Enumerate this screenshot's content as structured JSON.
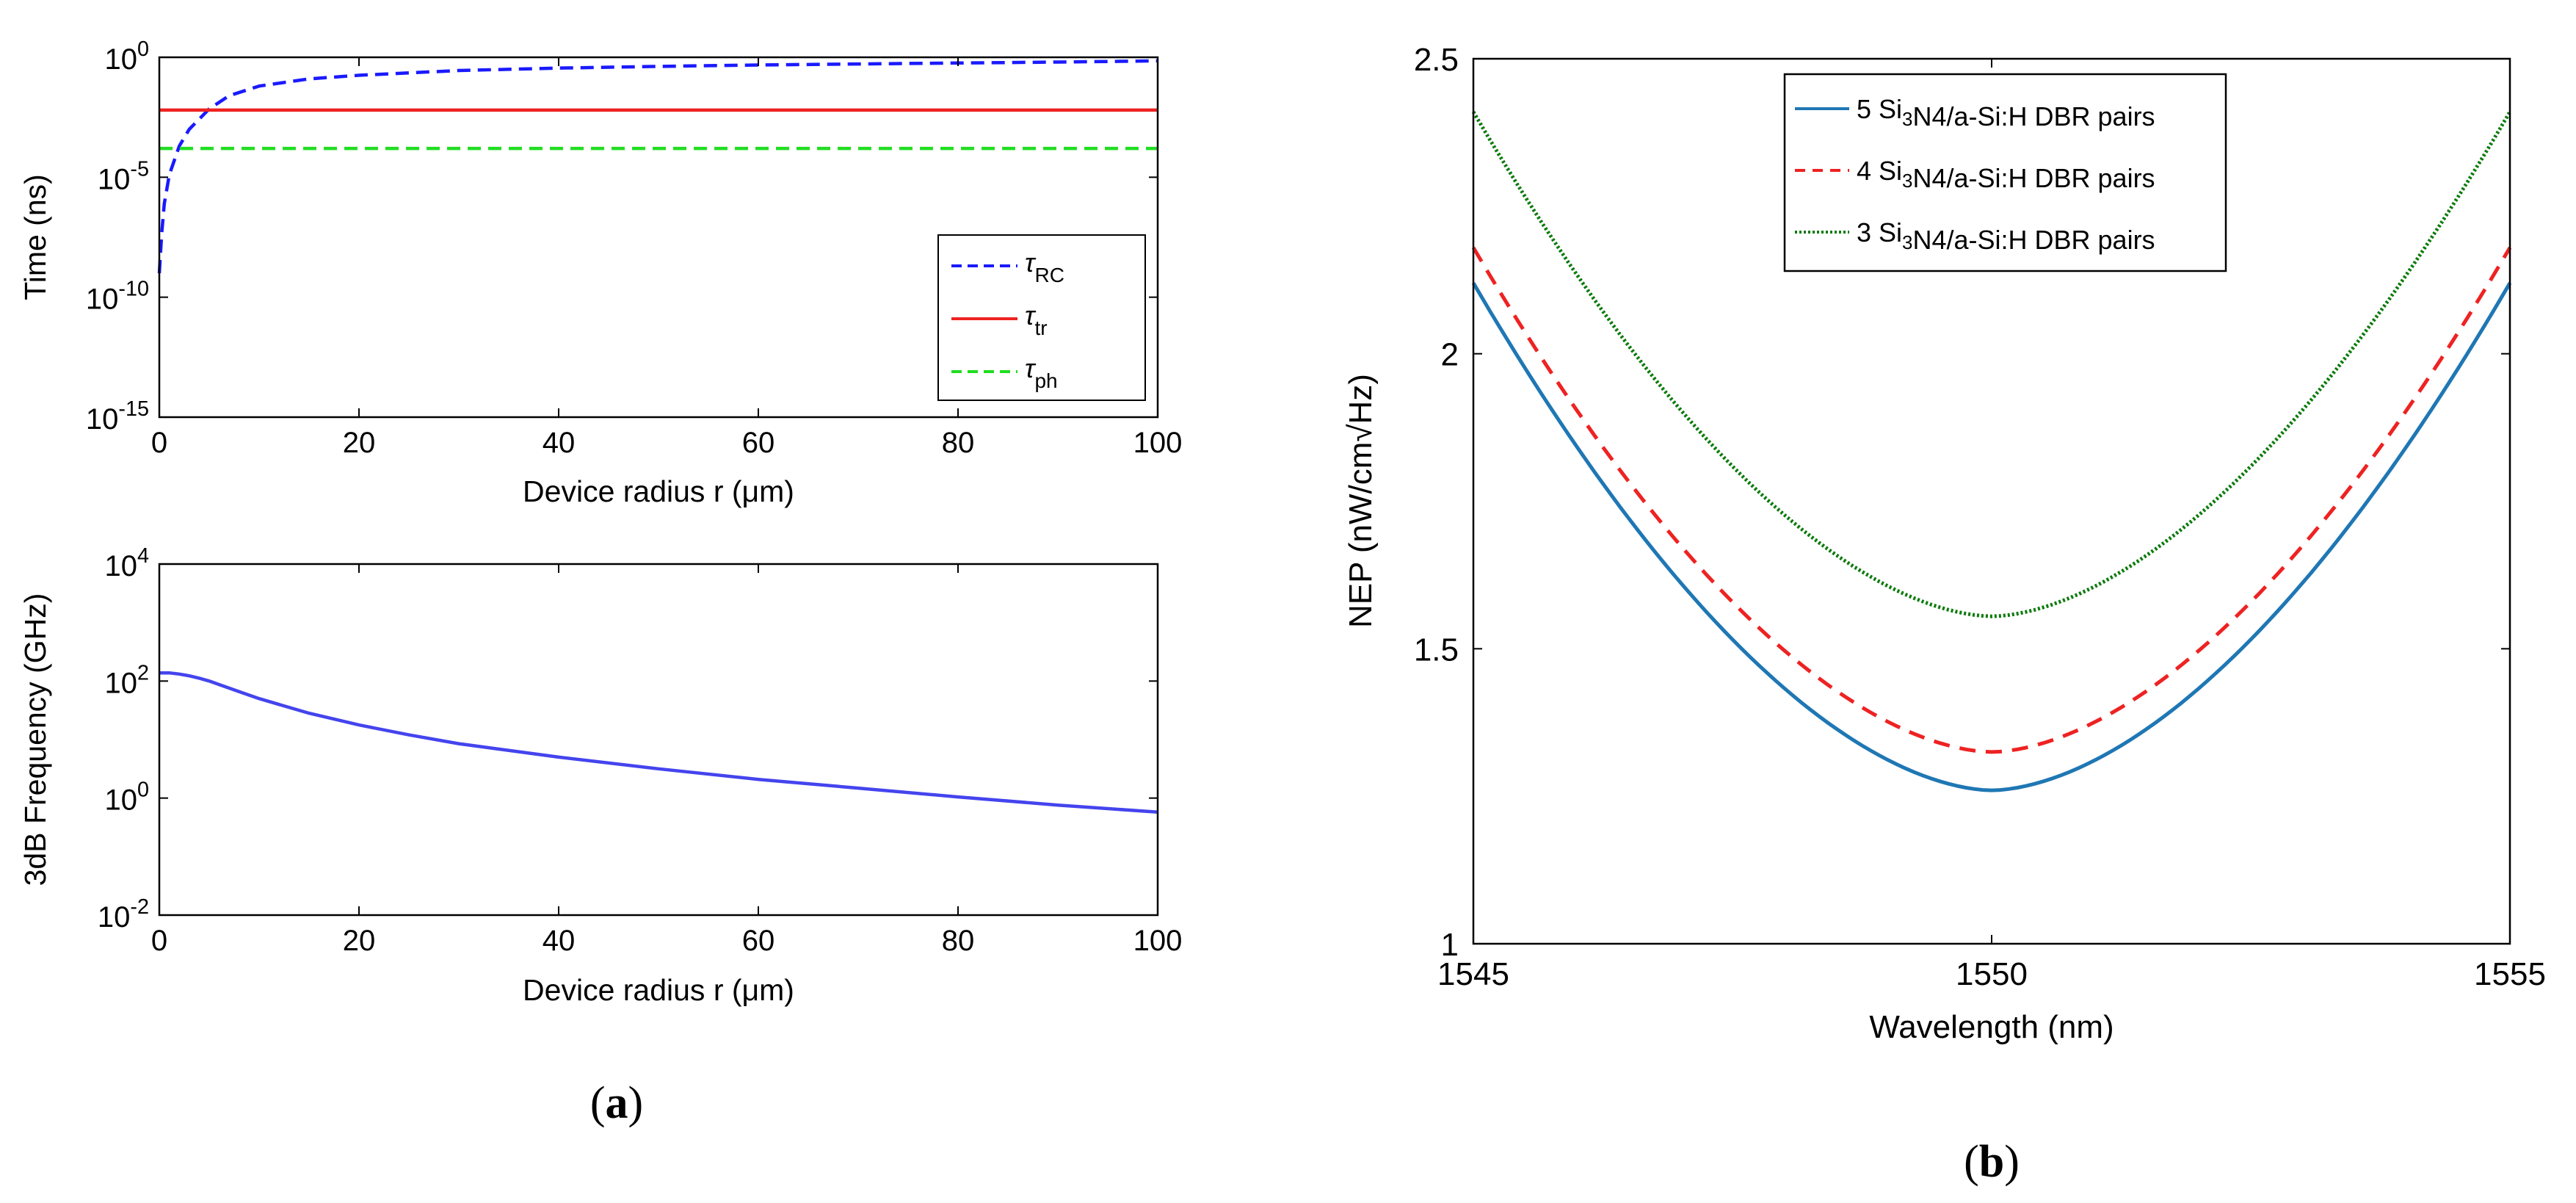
{
  "panel_labels": {
    "a": "a",
    "b": "b"
  },
  "chart_data": [
    {
      "id": "a-top",
      "type": "line",
      "xscale": "linear",
      "yscale": "log",
      "xlabel": "Device radius r (μm)",
      "ylabel": "Time (ns)",
      "xlim": [
        0,
        100
      ],
      "ylim_exp": [
        -15,
        0
      ],
      "xticks": [
        0,
        20,
        40,
        60,
        80,
        100
      ],
      "yticks_exp": [
        -15,
        -10,
        -5,
        0
      ],
      "legend_position": "lower-right",
      "series": [
        {
          "name": "τ_RC",
          "symbol": "τ",
          "sub": "RC",
          "color": "#1a1aff",
          "dash": "dashed",
          "x": [
            0,
            0.25,
            0.5,
            1,
            2,
            3,
            5,
            7,
            10,
            15,
            20,
            30,
            40,
            50,
            60,
            70,
            80,
            90,
            100
          ],
          "log10y": [
            -9,
            -7.3,
            -6.1,
            -4.9,
            -3.7,
            -3.0,
            -2.15,
            -1.6,
            -1.2,
            -0.9,
            -0.75,
            -0.55,
            -0.45,
            -0.38,
            -0.32,
            -0.28,
            -0.24,
            -0.2,
            -0.15
          ]
        },
        {
          "name": "τ_tr",
          "symbol": "τ",
          "sub": "tr",
          "color": "#ee2222",
          "dash": "solid",
          "x": [
            0,
            100
          ],
          "log10y": [
            -2.2,
            -2.2
          ]
        },
        {
          "name": "τ_ph",
          "symbol": "τ",
          "sub": "ph",
          "color": "#22dd22",
          "dash": "dashed",
          "x": [
            0,
            100
          ],
          "log10y": [
            -3.8,
            -3.8
          ]
        }
      ]
    },
    {
      "id": "a-bottom",
      "type": "line",
      "xscale": "linear",
      "yscale": "log",
      "xlabel": "Device radius r (μm)",
      "ylabel": "3dB Frequency (GHz)",
      "xlim": [
        0,
        100
      ],
      "ylim_exp": [
        -2,
        4
      ],
      "xticks": [
        0,
        20,
        40,
        60,
        80,
        100
      ],
      "yticks_exp": [
        -2,
        0,
        2,
        4
      ],
      "series": [
        {
          "name": "f_3dB",
          "color": "#4444ee",
          "dash": "solid",
          "x": [
            0,
            1,
            2,
            3,
            4,
            5,
            6,
            8,
            10,
            12,
            15,
            20,
            25,
            30,
            40,
            50,
            60,
            70,
            80,
            90,
            100
          ],
          "log10y": [
            2.14,
            2.14,
            2.12,
            2.09,
            2.05,
            2.0,
            1.94,
            1.82,
            1.7,
            1.6,
            1.45,
            1.25,
            1.08,
            0.93,
            0.7,
            0.5,
            0.32,
            0.17,
            0.02,
            -0.12,
            -0.24
          ]
        }
      ]
    },
    {
      "id": "b",
      "type": "line",
      "xscale": "linear",
      "yscale": "linear",
      "xlabel": "Wavelength (nm)",
      "ylabel": "NEP (nW/cm√Hz)",
      "xlim": [
        1545,
        1555
      ],
      "ylim": [
        1,
        2.5
      ],
      "xticks": [
        1545,
        1550,
        1555
      ],
      "yticks": [
        1,
        1.5,
        2,
        2.5
      ],
      "ytick_labels": [
        "1",
        "1.5",
        "2",
        "2.5"
      ],
      "legend_position": "top-center",
      "series": [
        {
          "name": "5 Si3N4/a-Si:H DBR pairs",
          "pre": "5 Si",
          "sub": "3",
          "post": "N4/a-Si:H DBR pairs",
          "color": "#1f77b4",
          "dash": "solid",
          "min": 1.26,
          "edge": 2.12
        },
        {
          "name": "4 Si3N4/a-Si:H DBR pairs",
          "pre": "4 Si",
          "sub": "3",
          "post": "N4/a-Si:H DBR pairs",
          "color": "#ee2222",
          "dash": "dashed",
          "min": 1.325,
          "edge": 2.18
        },
        {
          "name": "3 Si3N4/a-Si:H DBR pairs",
          "pre": "3 Si",
          "sub": "3",
          "post": "N4/a-Si:H DBR pairs",
          "color": "#0a7a0a",
          "dash": "dotted",
          "min": 1.555,
          "edge": 2.41
        }
      ]
    }
  ]
}
